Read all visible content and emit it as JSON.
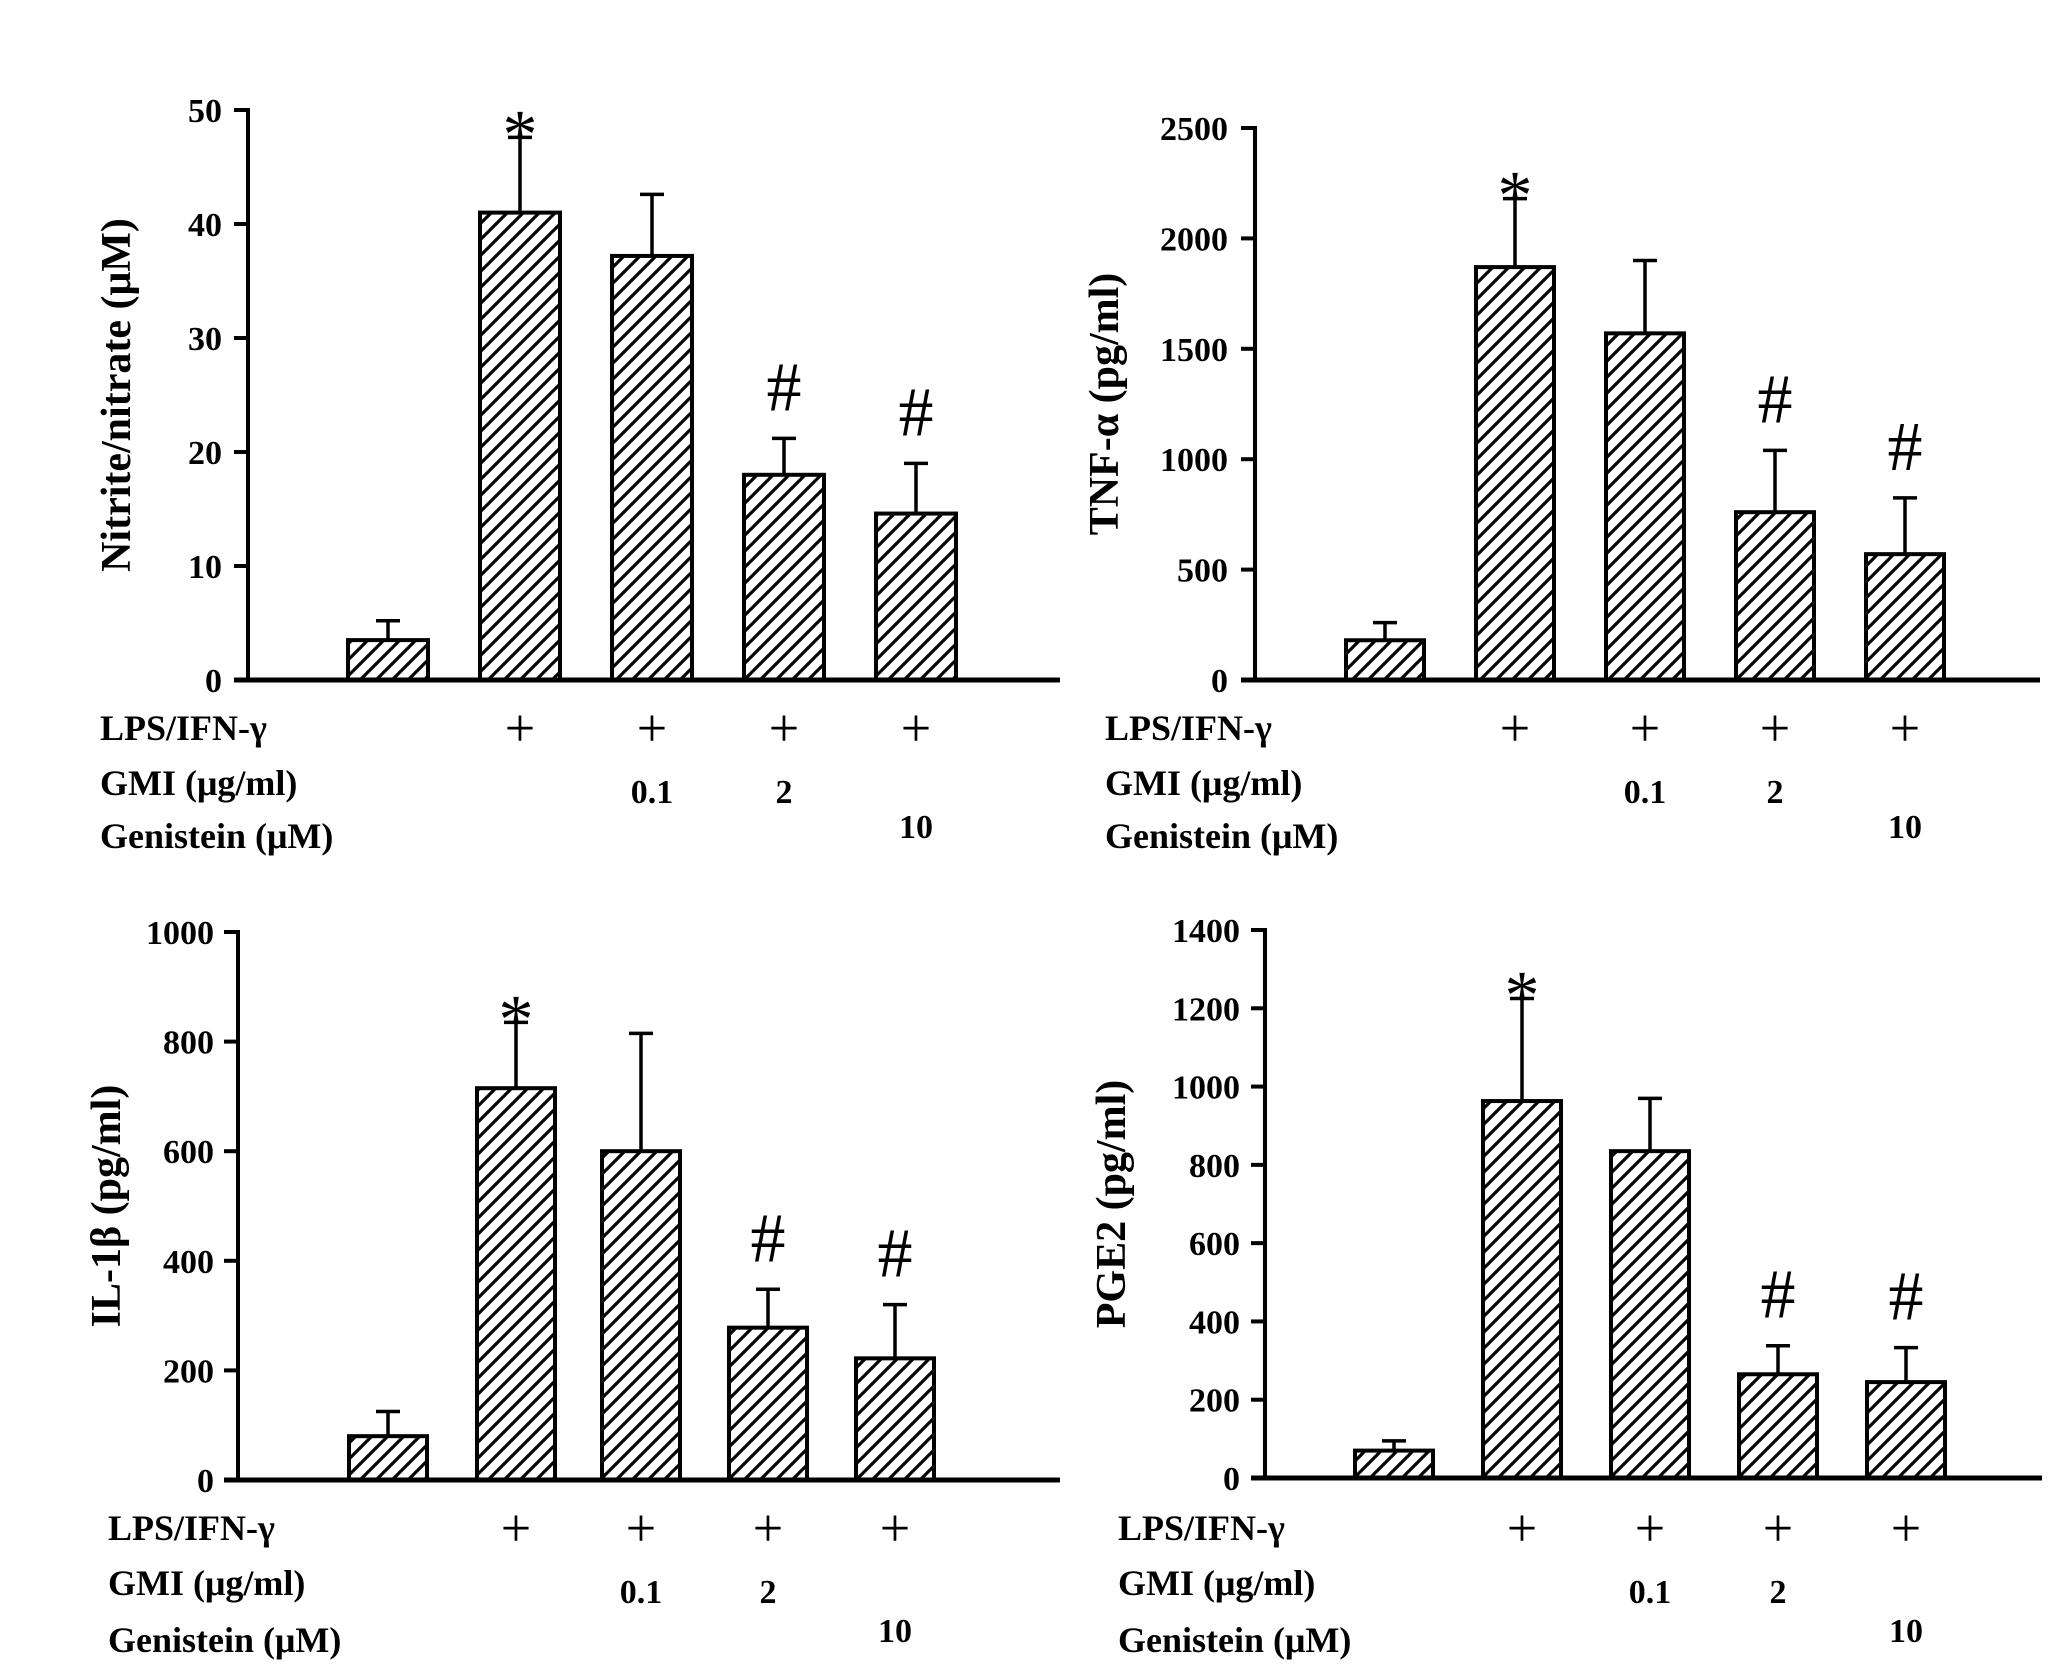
{
  "chart_data": [
    {
      "type": "bar",
      "panel": "top-left",
      "ylabel": "Nitrite/nitrate (μM)",
      "ylim": [
        0,
        50
      ],
      "yticks": [
        0,
        10,
        20,
        30,
        40,
        50
      ],
      "tick_labels": [
        "0",
        "10",
        "20",
        "30",
        "40",
        "50"
      ],
      "values": [
        3.5,
        41,
        37.2,
        18,
        14.6
      ],
      "errors": [
        1.7,
        6.6,
        5.4,
        3.2,
        4.4
      ],
      "annotations": [
        "",
        "*",
        "",
        "#",
        "#"
      ],
      "hatch": "diagonal"
    },
    {
      "type": "bar",
      "panel": "top-right",
      "ylabel": "TNF-α (pg/ml)",
      "ylim": [
        0,
        2500
      ],
      "yticks": [
        0,
        500,
        1000,
        1500,
        2000,
        2500
      ],
      "tick_labels": [
        "0",
        "500",
        "1000",
        "1500",
        "2000",
        "2500"
      ],
      "values": [
        180,
        1870,
        1570,
        760,
        570
      ],
      "errors": [
        80,
        310,
        330,
        280,
        255
      ],
      "annotations": [
        "",
        "*",
        "",
        "#",
        "#"
      ],
      "hatch": "diagonal"
    },
    {
      "type": "bar",
      "panel": "bottom-left",
      "ylabel": "IL-1β (pg/ml)",
      "ylim": [
        0,
        1000
      ],
      "yticks": [
        0,
        200,
        400,
        600,
        800,
        1000
      ],
      "tick_labels": [
        "0",
        "200",
        "400",
        "600",
        "800",
        "1000"
      ],
      "values": [
        80,
        715,
        600,
        278,
        222
      ],
      "errors": [
        45,
        120,
        215,
        70,
        98
      ],
      "annotations": [
        "",
        "*",
        "",
        "#",
        "#"
      ],
      "hatch": "diagonal"
    },
    {
      "type": "bar",
      "panel": "bottom-right",
      "ylabel": "PGE2 (pg/ml)",
      "ylim": [
        0,
        1400
      ],
      "yticks": [
        0,
        200,
        400,
        600,
        800,
        1000,
        1200,
        1400
      ],
      "tick_labels": [
        "0",
        "200",
        "400",
        "600",
        "800",
        "1000",
        "1200",
        "1400"
      ],
      "values": [
        70,
        963,
        835,
        265,
        245
      ],
      "errors": [
        25,
        262,
        135,
        73,
        88
      ],
      "annotations": [
        "",
        "*",
        "",
        "#",
        "#"
      ],
      "hatch": "diagonal"
    }
  ],
  "conditions": {
    "rows": [
      "LPS/IFN-γ",
      "GMI (μg/ml)",
      "Genistein (μM)"
    ],
    "lps": [
      "",
      "+",
      "+",
      "+",
      "+"
    ],
    "gmi": [
      "",
      "",
      "0.1",
      "2",
      ""
    ],
    "genistein": [
      "",
      "",
      "",
      "",
      "10"
    ]
  },
  "colors": {
    "bar_fill": "#ffffff",
    "hatch": "#000000",
    "axis": "#000000"
  }
}
